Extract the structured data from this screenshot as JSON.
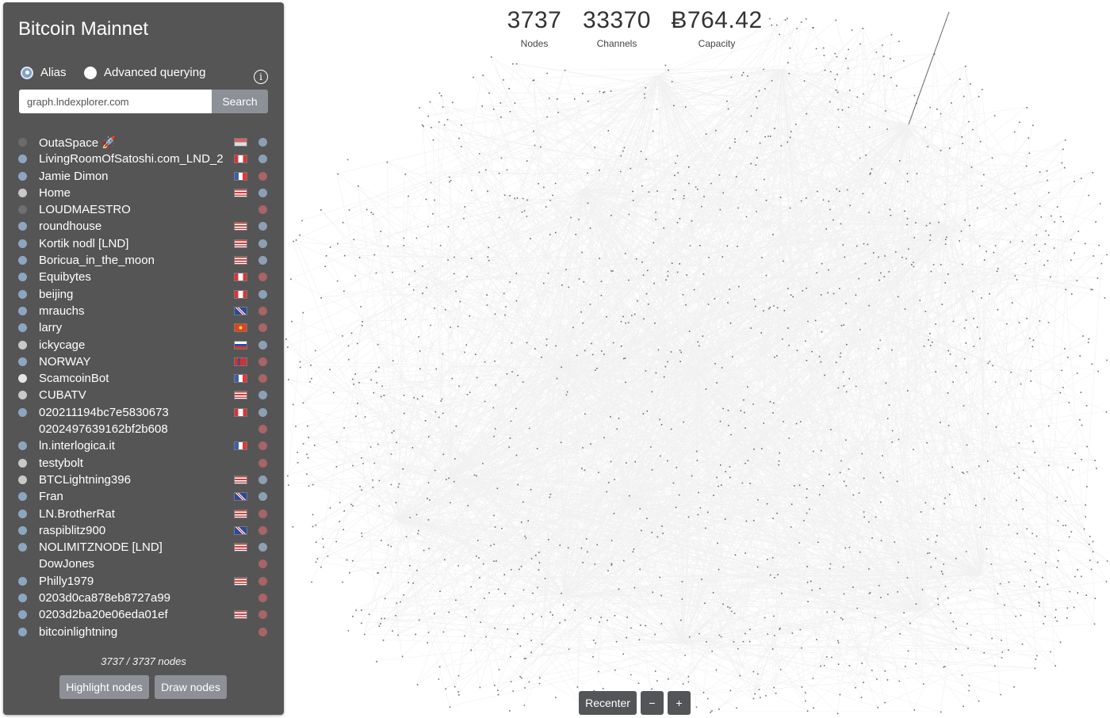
{
  "stats": {
    "nodes": {
      "value": "3737",
      "label": "Nodes"
    },
    "channels": {
      "value": "33370",
      "label": "Channels"
    },
    "capacity": {
      "value": "Ƀ764.42",
      "label": "Capacity"
    }
  },
  "panel": {
    "title": "Bitcoin Mainnet",
    "search_modes": [
      {
        "label": "Alias",
        "checked": true
      },
      {
        "label": "Advanced querying",
        "checked": false
      }
    ],
    "info_icon": "info-icon",
    "search": {
      "value": "graph.lndexplorer.com",
      "button": "Search"
    },
    "node_count": "3737 / 3737 nodes",
    "highlight_button": "Highlight nodes",
    "draw_button": "Draw nodes"
  },
  "nodes": [
    {
      "alias": "OutaSpace 🚀",
      "dot": "#6b6b6b",
      "flag": "striped",
      "status": "#8d9fb3"
    },
    {
      "alias": "LivingRoomOfSatoshi.com_LND_2",
      "dot": "#8da6bf",
      "flag": "CA",
      "status": "#8d9fb3"
    },
    {
      "alias": "Jamie Dimon",
      "dot": "#8da6bf",
      "flag": "FR",
      "status": "#a86466"
    },
    {
      "alias": "Home",
      "dot": "#c9c9c9",
      "flag": "US",
      "status": "#8d9fb3"
    },
    {
      "alias": "LOUDMAESTRO",
      "dot": "#6f6f70",
      "flag": "",
      "status": "#a86466"
    },
    {
      "alias": "roundhouse",
      "dot": "#8da6bf",
      "flag": "US",
      "status": "#8d9fb3"
    },
    {
      "alias": "Kortik nodl [LND]",
      "dot": "#8da6bf",
      "flag": "US",
      "status": "#8d9fb3"
    },
    {
      "alias": "Boricua_in_the_moon",
      "dot": "#8da6bf",
      "flag": "US",
      "status": "#8d9fb3"
    },
    {
      "alias": "Equibytes",
      "dot": "#8da6bf",
      "flag": "CA",
      "status": "#a86466"
    },
    {
      "alias": "beijing",
      "dot": "#8da6bf",
      "flag": "CA",
      "status": "#8d9fb3"
    },
    {
      "alias": "mrauchs",
      "dot": "#8da6bf",
      "flag": "GB",
      "status": "#a86466"
    },
    {
      "alias": "larry",
      "dot": "#8da6bf",
      "flag": "VN",
      "status": "#a86466"
    },
    {
      "alias": "ickycage",
      "dot": "#c9c9c9",
      "flag": "SK",
      "status": "#8d9fb3"
    },
    {
      "alias": "NORWAY",
      "dot": "#8da6bf",
      "flag": "NO",
      "status": "#a86466"
    },
    {
      "alias": "ScamcoinBot",
      "dot": "#e6e6e6",
      "flag": "FR",
      "status": "#a86466"
    },
    {
      "alias": "CUBATV",
      "dot": "#c9c9c9",
      "flag": "US",
      "status": "#8d9fb3"
    },
    {
      "alias": "020211194bc7e5830673",
      "dot": "#8da6bf",
      "flag": "CA",
      "status": "#8d9fb3"
    },
    {
      "alias": "0202497639162bf2b608",
      "dot": "#555556",
      "flag": "",
      "status": "#a86466"
    },
    {
      "alias": "ln.interlogica.it",
      "dot": "#8da6bf",
      "flag": "FR",
      "status": "#a86466"
    },
    {
      "alias": "testybolt",
      "dot": "#c9c9c9",
      "flag": "",
      "status": "#a86466"
    },
    {
      "alias": "BTCLightning396",
      "dot": "#c9c9c9",
      "flag": "US",
      "status": "#8d9fb3"
    },
    {
      "alias": "Fran",
      "dot": "#8da6bf",
      "flag": "GB",
      "status": "#8d9fb3"
    },
    {
      "alias": "LN.BrotherRat",
      "dot": "#8da6bf",
      "flag": "US",
      "status": "#a86466"
    },
    {
      "alias": "raspiblitz900",
      "dot": "#8da6bf",
      "flag": "GB",
      "status": "#a86466"
    },
    {
      "alias": "NOLIMITZNODE [LND]",
      "dot": "#8da6bf",
      "flag": "US",
      "status": "#8d9fb3"
    },
    {
      "alias": "DowJones",
      "dot": "#555556",
      "flag": "",
      "status": "#a86466"
    },
    {
      "alias": "Philly1979",
      "dot": "#8da6bf",
      "flag": "US",
      "status": "#a86466"
    },
    {
      "alias": "0203d0ca878eb8727a99",
      "dot": "#8da6bf",
      "flag": "",
      "status": "#a86466"
    },
    {
      "alias": "0203d2ba20e06eda01ef",
      "dot": "#8da6bf",
      "flag": "US",
      "status": "#a86466"
    },
    {
      "alias": "bitcoinlightning",
      "dot": "#8da6bf",
      "flag": "",
      "status": "#a86466"
    }
  ],
  "controls": {
    "recenter": "Recenter",
    "zoom_out": "−",
    "zoom_in": "+"
  }
}
